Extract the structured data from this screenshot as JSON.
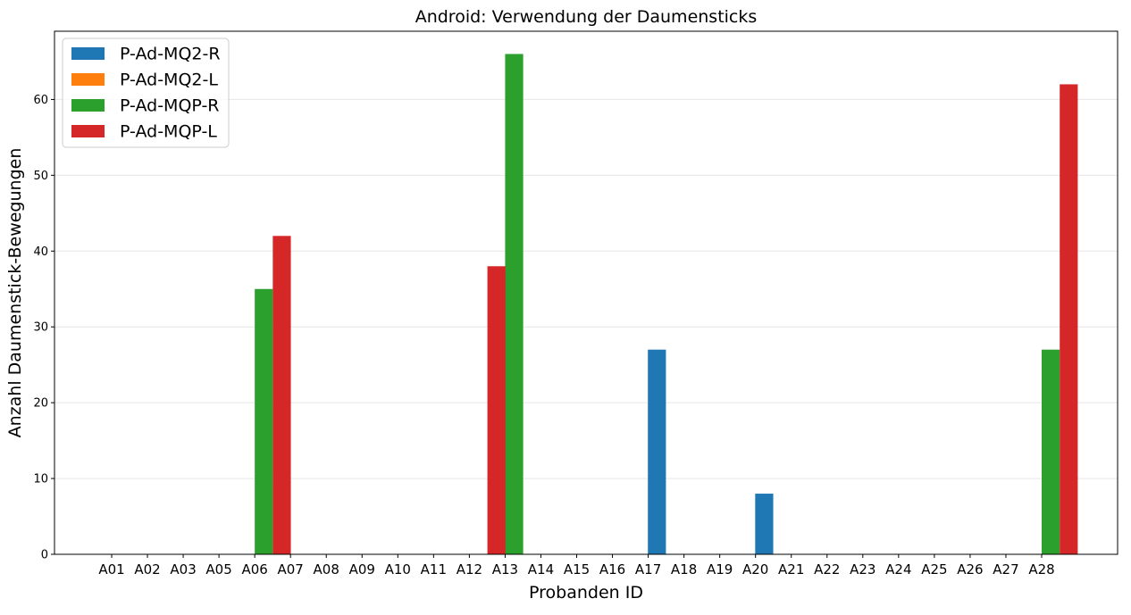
{
  "chart_data": {
    "type": "bar",
    "title": "Android: Verwendung der Daumensticks",
    "xlabel": "Probanden ID",
    "ylabel": "Anzahl Daumenstick-Bewegungen",
    "categories": [
      "A01",
      "A02",
      "A03",
      "A05",
      "A06",
      "A07",
      "A08",
      "A09",
      "A10",
      "A11",
      "A12",
      "A13",
      "A14",
      "A15",
      "A16",
      "A17",
      "A18",
      "A19",
      "A20",
      "A21",
      "A22",
      "A23",
      "A24",
      "A25",
      "A26",
      "A27",
      "A28"
    ],
    "ylim": [
      0,
      69
    ],
    "yticks": [
      0,
      10,
      20,
      30,
      40,
      50,
      60
    ],
    "grid": "y",
    "legend_position": "top-left",
    "series": [
      {
        "name": "P-Ad-MQ2-R",
        "color": "#1f77b4",
        "values": [
          0,
          0,
          0,
          0,
          0,
          0,
          0,
          0,
          0,
          0,
          0,
          0,
          0,
          0,
          0,
          0,
          27,
          0,
          0,
          8,
          0,
          0,
          0,
          0,
          0,
          0,
          0
        ]
      },
      {
        "name": "P-Ad-MQ2-L",
        "color": "#ff7f0e",
        "values": [
          0,
          0,
          0,
          0,
          0,
          0,
          0,
          0,
          0,
          0,
          0,
          0,
          0,
          0,
          0,
          0,
          0,
          0,
          0,
          0,
          0,
          0,
          0,
          0,
          0,
          0,
          0
        ]
      },
      {
        "name": "P-Ad-MQP-R",
        "color": "#2ca02c",
        "values": [
          0,
          0,
          0,
          0,
          35,
          0,
          0,
          0,
          0,
          0,
          0,
          66,
          0,
          0,
          0,
          0,
          0,
          0,
          0,
          0,
          0,
          0,
          0,
          0,
          0,
          0,
          27
        ]
      },
      {
        "name": "P-Ad-MQP-L",
        "color": "#d62728",
        "values": [
          0,
          0,
          0,
          0,
          42,
          0,
          0,
          0,
          0,
          0,
          38,
          0,
          0,
          0,
          0,
          0,
          0,
          0,
          0,
          0,
          0,
          0,
          0,
          0,
          0,
          0,
          62
        ]
      }
    ]
  }
}
